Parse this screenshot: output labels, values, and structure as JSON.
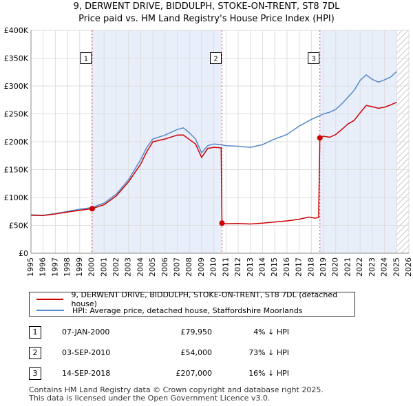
{
  "title_line1": "9, DERWENT DRIVE, BIDDULPH, STOKE-ON-TRENT, ST8 7DL",
  "title_line2": "Price paid vs. HM Land Registry's House Price Index (HPI)",
  "chart_data": {
    "type": "line",
    "xlim": [
      1995,
      2026
    ],
    "ylim": [
      0,
      400000
    ],
    "x_ticks": [
      1995,
      1996,
      1997,
      1998,
      1999,
      2000,
      2001,
      2002,
      2003,
      2004,
      2005,
      2006,
      2007,
      2008,
      2009,
      2010,
      2011,
      2012,
      2013,
      2014,
      2015,
      2016,
      2017,
      2018,
      2019,
      2020,
      2021,
      2022,
      2023,
      2024,
      2025,
      2026
    ],
    "y_ticks": [
      {
        "value": 0,
        "label": "£0"
      },
      {
        "value": 50000,
        "label": "£50K"
      },
      {
        "value": 100000,
        "label": "£100K"
      },
      {
        "value": 150000,
        "label": "£150K"
      },
      {
        "value": 200000,
        "label": "£200K"
      },
      {
        "value": 250000,
        "label": "£250K"
      },
      {
        "value": 300000,
        "label": "£300K"
      },
      {
        "value": 350000,
        "label": "£350K"
      },
      {
        "value": 400000,
        "label": "£400K"
      }
    ],
    "shaded_ranges": [
      [
        2000.02,
        2010.67
      ],
      [
        2018.7,
        2025.0
      ]
    ],
    "hatch_from": 2025.0,
    "series": [
      {
        "name": "9, DERWENT DRIVE, BIDDULPH, STOKE-ON-TRENT, ST8 7DL (detached house)",
        "color": "#cc0000",
        "points": [
          [
            1995.0,
            68000
          ],
          [
            1996.0,
            67500
          ],
          [
            1997.0,
            70500
          ],
          [
            1998.0,
            74000
          ],
          [
            1999.0,
            77000
          ],
          [
            2000.02,
            79950
          ],
          [
            2001.0,
            87000
          ],
          [
            2002.0,
            103000
          ],
          [
            2003.0,
            128000
          ],
          [
            2004.0,
            160000
          ],
          [
            2004.5,
            182000
          ],
          [
            2005.0,
            200000
          ],
          [
            2006.0,
            205000
          ],
          [
            2007.0,
            212000
          ],
          [
            2007.5,
            212000
          ],
          [
            2008.0,
            204000
          ],
          [
            2008.5,
            196000
          ],
          [
            2009.0,
            172000
          ],
          [
            2009.5,
            188000
          ],
          [
            2010.0,
            190000
          ],
          [
            2010.6,
            189000
          ],
          [
            2010.67,
            54000
          ],
          [
            2011.0,
            53000
          ],
          [
            2012.0,
            53500
          ],
          [
            2013.0,
            52500
          ],
          [
            2014.0,
            54000
          ],
          [
            2015.0,
            56000
          ],
          [
            2016.0,
            58000
          ],
          [
            2017.0,
            61000
          ],
          [
            2017.8,
            65000
          ],
          [
            2018.3,
            63000
          ],
          [
            2018.6,
            64000
          ],
          [
            2018.7,
            207000
          ],
          [
            2019.0,
            210000
          ],
          [
            2019.5,
            208000
          ],
          [
            2020.0,
            213000
          ],
          [
            2020.5,
            222000
          ],
          [
            2021.0,
            232000
          ],
          [
            2021.5,
            238000
          ],
          [
            2022.0,
            252000
          ],
          [
            2022.5,
            265000
          ],
          [
            2023.0,
            263000
          ],
          [
            2023.5,
            260000
          ],
          [
            2024.0,
            262000
          ],
          [
            2024.5,
            266000
          ],
          [
            2025.0,
            271000
          ]
        ]
      },
      {
        "name": "HPI: Average price, detached house, Staffordshire Moorlands",
        "color": "#5588cc",
        "points": [
          [
            1995.0,
            69000
          ],
          [
            1996.0,
            68000
          ],
          [
            1997.0,
            71000
          ],
          [
            1998.0,
            75000
          ],
          [
            1999.0,
            79000
          ],
          [
            2000.0,
            82000
          ],
          [
            2001.0,
            90000
          ],
          [
            2002.0,
            106000
          ],
          [
            2003.0,
            132000
          ],
          [
            2004.0,
            168000
          ],
          [
            2004.5,
            190000
          ],
          [
            2005.0,
            205000
          ],
          [
            2006.0,
            212000
          ],
          [
            2007.0,
            222000
          ],
          [
            2007.5,
            225000
          ],
          [
            2008.0,
            216000
          ],
          [
            2008.5,
            205000
          ],
          [
            2009.0,
            180000
          ],
          [
            2009.5,
            193000
          ],
          [
            2010.0,
            196000
          ],
          [
            2010.5,
            195000
          ],
          [
            2011.0,
            193000
          ],
          [
            2012.0,
            192000
          ],
          [
            2013.0,
            190000
          ],
          [
            2014.0,
            195000
          ],
          [
            2015.0,
            205000
          ],
          [
            2016.0,
            213000
          ],
          [
            2017.0,
            228000
          ],
          [
            2018.0,
            240000
          ],
          [
            2018.7,
            247000
          ],
          [
            2019.0,
            250000
          ],
          [
            2019.5,
            253000
          ],
          [
            2020.0,
            258000
          ],
          [
            2020.5,
            268000
          ],
          [
            2021.0,
            280000
          ],
          [
            2021.5,
            292000
          ],
          [
            2022.0,
            310000
          ],
          [
            2022.5,
            320000
          ],
          [
            2023.0,
            312000
          ],
          [
            2023.5,
            307000
          ],
          [
            2024.0,
            311000
          ],
          [
            2024.5,
            316000
          ],
          [
            2025.0,
            326000
          ]
        ]
      }
    ],
    "sale_points": [
      {
        "label": "1",
        "x": 2000.02,
        "y": 79950
      },
      {
        "label": "2",
        "x": 2010.67,
        "y": 54000
      },
      {
        "label": "3",
        "x": 2018.7,
        "y": 207000
      }
    ],
    "marker_label_y": 350000
  },
  "legend": [
    {
      "label": "9, DERWENT DRIVE, BIDDULPH, STOKE-ON-TRENT, ST8 7DL (detached house)",
      "color": "#cc0000"
    },
    {
      "label": "HPI: Average price, detached house, Staffordshire Moorlands",
      "color": "#5588cc"
    }
  ],
  "sales": [
    {
      "num": "1",
      "date": "07-JAN-2000",
      "price": "£79,950",
      "hpi": "4% ↓ HPI"
    },
    {
      "num": "2",
      "date": "03-SEP-2010",
      "price": "£54,000",
      "hpi": "73% ↓ HPI"
    },
    {
      "num": "3",
      "date": "14-SEP-2018",
      "price": "£207,000",
      "hpi": "16% ↓ HPI"
    }
  ],
  "footer_line1": "Contains HM Land Registry data © Crown copyright and database right 2025.",
  "footer_line2": "This data is licensed under the Open Government Licence v3.0."
}
